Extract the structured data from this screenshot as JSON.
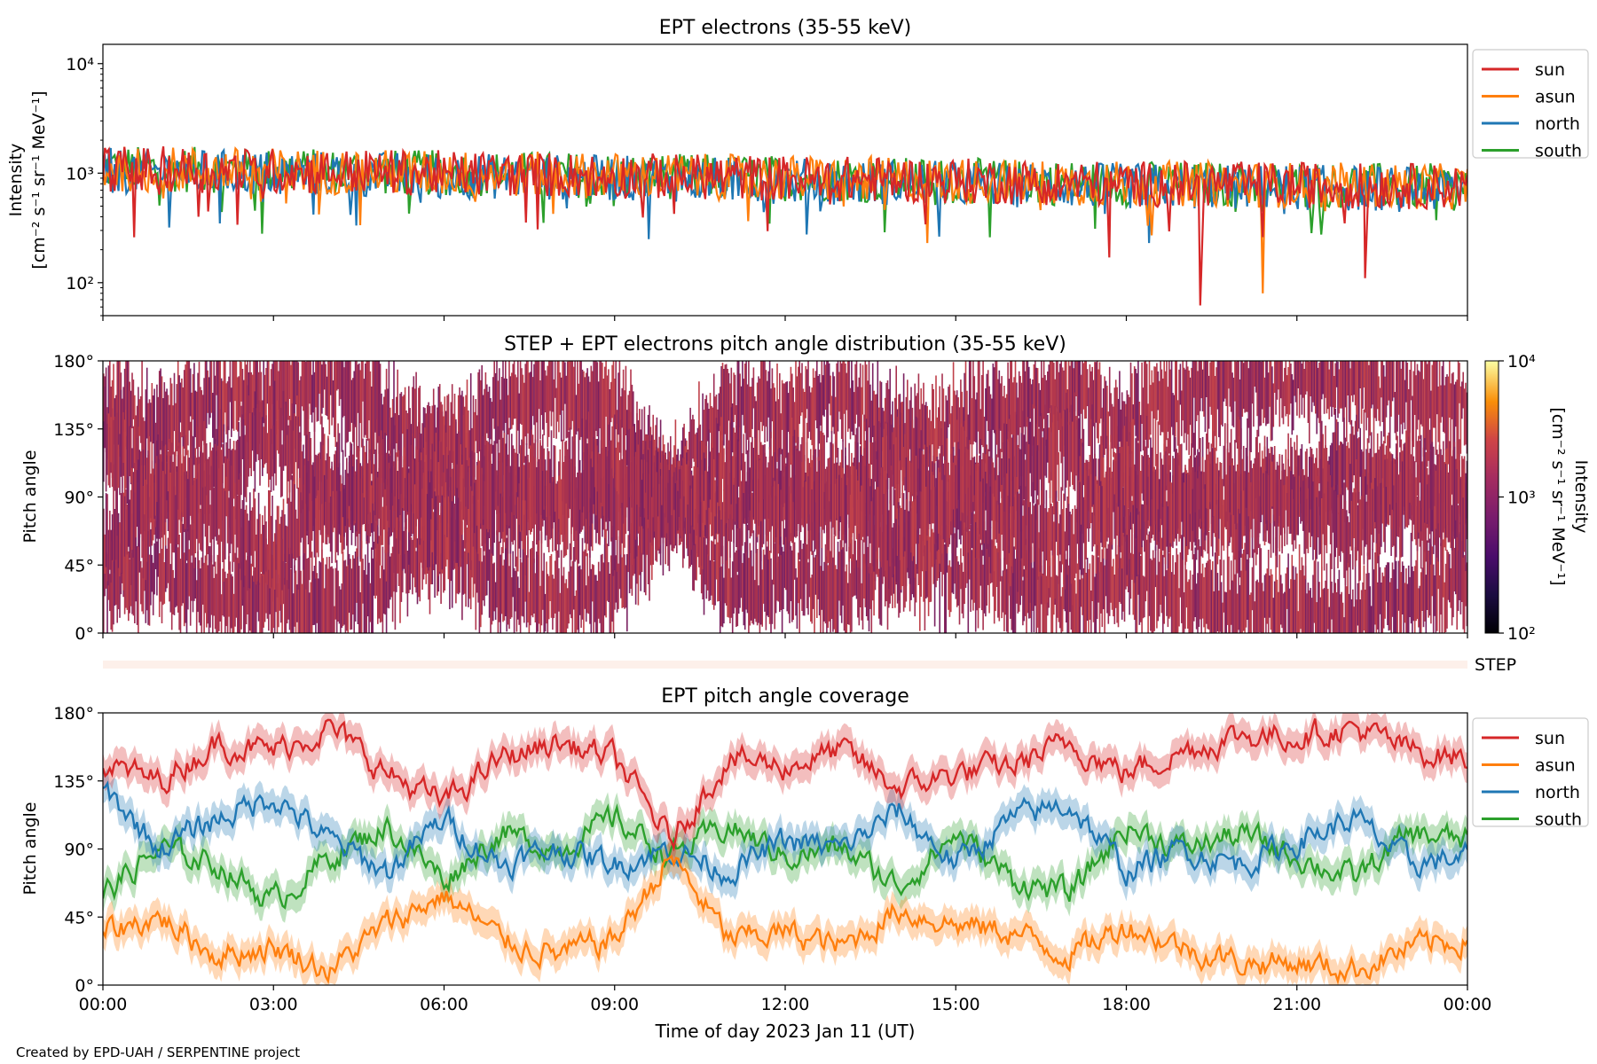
{
  "footer": "Created by EPD-UAH / SERPENTINE project",
  "colors": {
    "sun": "#d62728",
    "asun": "#ff7f0e",
    "north": "#1f77b4",
    "south": "#2ca02c"
  },
  "chart_data": [
    {
      "type": "line",
      "title": "EPT electrons (35-55 keV)",
      "ylabel": "Intensity",
      "ylabel_unit": "[cm⁻² s⁻¹ sr⁻¹ MeV⁻¹]",
      "yscale": "log",
      "ylim": [
        50,
        15000
      ],
      "yticks": [
        {
          "value": 100,
          "label": "10²"
        },
        {
          "value": 1000,
          "label": "10³"
        },
        {
          "value": 10000,
          "label": "10⁴"
        }
      ],
      "x_hours": [
        0,
        24
      ],
      "legend_position": "upper right, outside",
      "series": [
        {
          "name": "sun",
          "color": "#d62728",
          "x_hours": [
            0,
            3,
            6,
            9,
            12,
            15,
            18,
            21,
            24
          ],
          "median": [
            1100,
            1050,
            1000,
            950,
            900,
            850,
            800,
            780,
            750
          ],
          "dips": [
            {
              "x": 0.55,
              "y": 260
            },
            {
              "x": 19.3,
              "y": 62
            },
            {
              "x": 22.2,
              "y": 110
            },
            {
              "x": 17.7,
              "y": 170
            }
          ]
        },
        {
          "name": "asun",
          "color": "#ff7f0e",
          "x_hours": [
            0,
            3,
            6,
            9,
            12,
            15,
            18,
            21,
            24
          ],
          "median": [
            1100,
            1050,
            1000,
            950,
            900,
            850,
            800,
            780,
            750
          ],
          "dips": [
            {
              "x": 20.4,
              "y": 80
            },
            {
              "x": 3.8,
              "y": 420
            },
            {
              "x": 14.5,
              "y": 230
            }
          ]
        },
        {
          "name": "north",
          "color": "#1f77b4",
          "x_hours": [
            0,
            3,
            6,
            9,
            12,
            15,
            18,
            21,
            24
          ],
          "median": [
            1050,
            1000,
            950,
            900,
            850,
            800,
            760,
            740,
            700
          ],
          "dips": [
            {
              "x": 9.6,
              "y": 250
            },
            {
              "x": 18.4,
              "y": 230
            }
          ]
        },
        {
          "name": "south",
          "color": "#2ca02c",
          "x_hours": [
            0,
            3,
            6,
            9,
            12,
            15,
            18,
            21,
            24
          ],
          "median": [
            1100,
            1050,
            1000,
            950,
            900,
            850,
            800,
            780,
            750
          ],
          "dips": [
            {
              "x": 2.8,
              "y": 280
            },
            {
              "x": 15.6,
              "y": 260
            }
          ]
        }
      ]
    },
    {
      "type": "heatmap",
      "title": "STEP + EPT electrons pitch angle distribution (35-55 keV)",
      "ylabel": "Pitch angle",
      "ylim": [
        0,
        180
      ],
      "yticks": [
        "0°",
        "45°",
        "90°",
        "135°",
        "180°"
      ],
      "x_hours": [
        0,
        24
      ],
      "colorbar": {
        "label": "Intensity",
        "unit": "[cm⁻² s⁻¹ sr⁻¹ MeV⁻¹]",
        "scale": "log",
        "range": [
          100,
          10000
        ],
        "ticks": [
          {
            "value": 100,
            "label": "10²"
          },
          {
            "value": 1000,
            "label": "10³"
          },
          {
            "value": 10000,
            "label": "10⁴"
          }
        ],
        "colormap": "inferno"
      }
    },
    {
      "type": "bar",
      "label": "STEP",
      "color": "#fdf0ea"
    },
    {
      "type": "area",
      "title": "EPT pitch angle coverage",
      "ylabel": "Pitch angle",
      "xlabel": "Time of day 2023 Jan 11 (UT)",
      "ylim": [
        0,
        180
      ],
      "yticks": [
        "0°",
        "45°",
        "90°",
        "135°",
        "180°"
      ],
      "xticks": [
        "00:00",
        "03:00",
        "06:00",
        "09:00",
        "12:00",
        "15:00",
        "18:00",
        "21:00",
        "00:00"
      ],
      "legend_position": "upper right, outside",
      "x_hours": [
        0,
        1,
        2,
        3,
        4,
        5,
        6,
        7,
        8,
        9,
        10,
        11,
        12,
        13,
        14,
        15,
        16,
        17,
        18,
        19,
        20,
        21,
        22,
        23,
        24
      ],
      "series": [
        {
          "name": "sun",
          "color": "#d62728",
          "values": [
            145,
            135,
            160,
            155,
            170,
            140,
            120,
            150,
            160,
            150,
            95,
            150,
            145,
            155,
            130,
            140,
            145,
            160,
            140,
            155,
            165,
            165,
            170,
            155,
            150
          ]
        },
        {
          "name": "asun",
          "color": "#ff7f0e",
          "values": [
            35,
            45,
            20,
            25,
            10,
            40,
            60,
            30,
            20,
            30,
            85,
            30,
            35,
            25,
            50,
            40,
            35,
            20,
            40,
            25,
            15,
            15,
            10,
            25,
            30
          ]
        },
        {
          "name": "north",
          "color": "#1f77b4",
          "values": [
            130,
            90,
            110,
            125,
            95,
            75,
            110,
            80,
            90,
            80,
            90,
            75,
            95,
            90,
            115,
            80,
            110,
            120,
            75,
            90,
            80,
            95,
            110,
            80,
            85
          ]
        },
        {
          "name": "south",
          "color": "#2ca02c",
          "values": [
            60,
            90,
            80,
            55,
            85,
            105,
            70,
            100,
            90,
            110,
            85,
            105,
            85,
            90,
            65,
            100,
            70,
            60,
            105,
            90,
            100,
            85,
            70,
            100,
            95
          ]
        }
      ],
      "band_halfwidth": 10
    }
  ]
}
